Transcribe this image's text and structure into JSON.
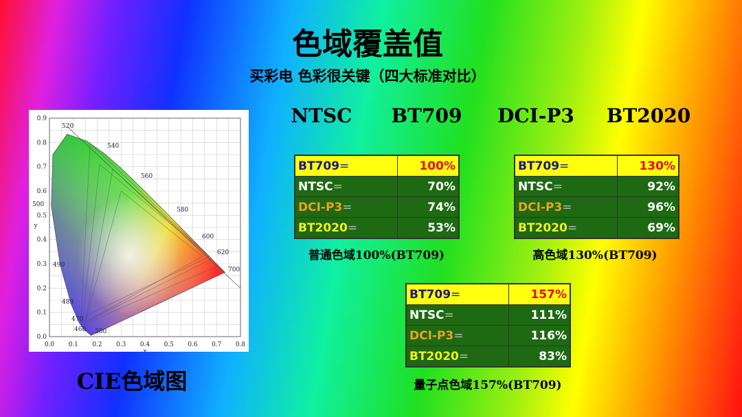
{
  "header": {
    "title": "色域覆盖值",
    "subtitle": "买彩电  色彩很关键（四大标准对比）"
  },
  "standards": [
    "NTSC",
    "BT709",
    "DCI-P3",
    "BT2020"
  ],
  "tables": [
    {
      "rows": [
        {
          "label": "BT709",
          "sign": "=",
          "value": "100%"
        },
        {
          "label": "NTSC",
          "sign": "=",
          "value": "70%"
        },
        {
          "label": "DCI-P3",
          "sign": "=",
          "value": "74%"
        },
        {
          "label": "BT2020",
          "sign": "=",
          "value": "53%"
        }
      ],
      "caption": "普通色域100%(BT709)"
    },
    {
      "rows": [
        {
          "label": "BT709",
          "sign": "=",
          "value": "130%"
        },
        {
          "label": "NTSC",
          "sign": "=",
          "value": "92%"
        },
        {
          "label": "DCI-P3",
          "sign": "=",
          "value": "96%"
        },
        {
          "label": "BT2020",
          "sign": "=",
          "value": "69%"
        }
      ],
      "caption": "高色域130%(BT709)"
    },
    {
      "rows": [
        {
          "label": "BT709",
          "sign": "=",
          "value": "157%"
        },
        {
          "label": "NTSC",
          "sign": "=",
          "value": "111%"
        },
        {
          "label": "DCI-P3",
          "sign": "=",
          "value": "116%"
        },
        {
          "label": "BT2020",
          "sign": "=",
          "value": "83%"
        }
      ],
      "caption": "量子点色域157%(BT709)"
    }
  ],
  "cie": {
    "caption": "CIE色域图",
    "x_label": "x",
    "y_label": "y",
    "xticks": [
      "0.0",
      "0.1",
      "0.2",
      "0.3",
      "0.4",
      "0.5",
      "0.6",
      "0.7",
      "0.8"
    ],
    "yticks": [
      "0.0",
      "0.1",
      "0.2",
      "0.3",
      "0.4",
      "0.5",
      "0.6",
      "0.7",
      "0.8",
      "0.9"
    ],
    "wavelengths": [
      "380",
      "460",
      "470",
      "480",
      "490",
      "500",
      "520",
      "540",
      "560",
      "580",
      "600",
      "620",
      "700"
    ]
  }
}
